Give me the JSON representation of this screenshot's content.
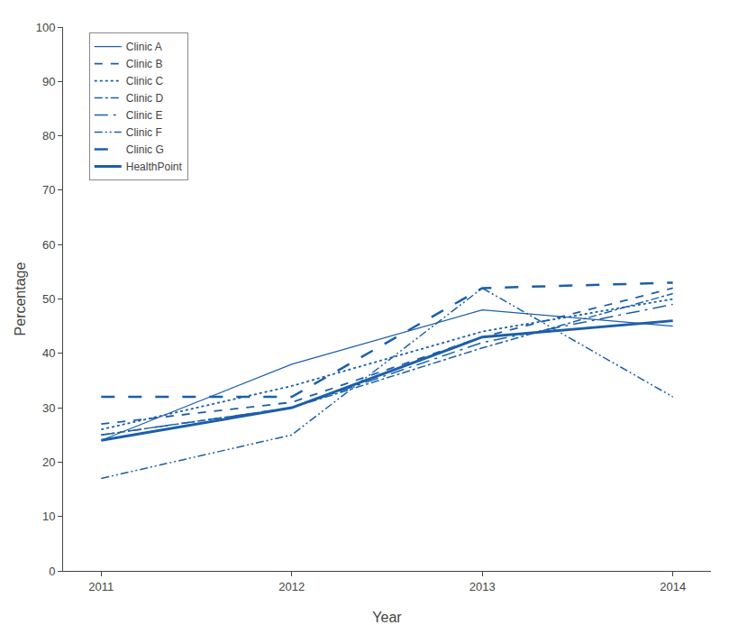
{
  "chart_data": {
    "type": "line",
    "xlabel": "Year",
    "ylabel": "Percentage",
    "x": [
      2011,
      2012,
      2013,
      2014
    ],
    "xlim": [
      2010.8,
      2014.2
    ],
    "xticks": [
      2011,
      2012,
      2013,
      2014
    ],
    "ylim": [
      0,
      100
    ],
    "yticks": [
      0,
      10,
      20,
      30,
      40,
      50,
      60,
      70,
      80,
      90,
      100
    ],
    "grid": false,
    "legend": "upper left",
    "color": "#1B5FAA",
    "series": [
      {
        "name": "Clinic A",
        "values": [
          24,
          38,
          48,
          45
        ],
        "line_style": "solid"
      },
      {
        "name": "Clinic B",
        "values": [
          27,
          31,
          43,
          52
        ],
        "line_style": "dash"
      },
      {
        "name": "Clinic C",
        "values": [
          26,
          34,
          44,
          50
        ],
        "line_style": "dot"
      },
      {
        "name": "Clinic D",
        "values": [
          25,
          30,
          41,
          51
        ],
        "line_style": "dashdot"
      },
      {
        "name": "Clinic E",
        "values": [
          25,
          30,
          42,
          49
        ],
        "line_style": "longdashdot"
      },
      {
        "name": "Clinic F",
        "values": [
          17,
          25,
          52,
          32
        ],
        "line_style": "dashdotdot"
      },
      {
        "name": "Clinic G",
        "values": [
          32,
          32,
          52,
          53
        ],
        "line_style": "longdash"
      },
      {
        "name": "HealthPoint",
        "values": [
          24,
          30,
          43,
          46
        ],
        "line_style": "solid"
      }
    ]
  }
}
